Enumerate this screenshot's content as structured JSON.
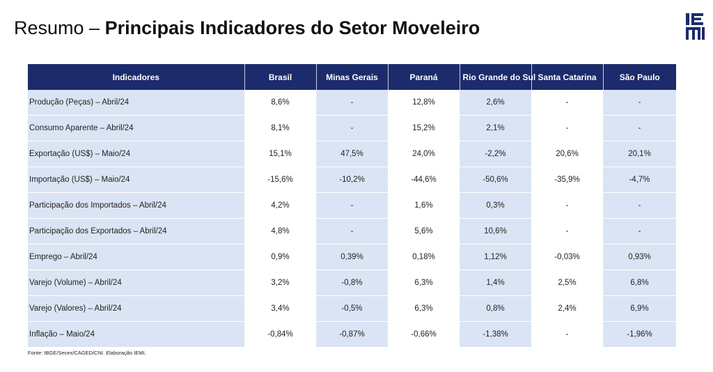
{
  "title": {
    "prefix": "Resumo –",
    "main": "Principais Indicadores do Setor Moveleiro"
  },
  "logo": {
    "icon": "iemi-logo-icon",
    "text": "IEMI",
    "color": "#1b2b6b"
  },
  "table": {
    "headers": [
      "Indicadores",
      "Brasil",
      "Minas Gerais",
      "Paraná",
      "Rio Grande do Sul",
      "Santa Catarina",
      "São Paulo"
    ],
    "rows": [
      [
        "Produção (Peças) – Abril/24",
        "8,6%",
        "-",
        "12,8%",
        "2,6%",
        "-",
        "-"
      ],
      [
        "Consumo Aparente – Abril/24",
        "8,1%",
        "-",
        "15,2%",
        "2,1%",
        "-",
        "-"
      ],
      [
        "Exportação (US$) – Maio/24",
        "15,1%",
        "47,5%",
        "24,0%",
        "-2,2%",
        "20,6%",
        "20,1%"
      ],
      [
        "Importação (US$) – Maio/24",
        "-15,6%",
        "-10,2%",
        "-44,6%",
        "-50,6%",
        "-35,9%",
        "-4,7%"
      ],
      [
        "Participação dos Importados – Abril/24",
        "4,2%",
        "-",
        "1,6%",
        "0,3%",
        "-",
        "-"
      ],
      [
        "Participação dos Exportados – Abril/24",
        "4,8%",
        "-",
        "5,6%",
        "10,6%",
        "-",
        "-"
      ],
      [
        "Emprego – Abril/24",
        "0,9%",
        "0,39%",
        "0,18%",
        "1,12%",
        "-0,03%",
        "0,93%"
      ],
      [
        "Varejo (Volume) – Abril/24",
        "3,2%",
        "-0,8%",
        "6,3%",
        "1,4%",
        "2,5%",
        "6,8%"
      ],
      [
        "Varejo (Valores) – Abril/24",
        "3,4%",
        "-0,5%",
        "6,3%",
        "0,8%",
        "2,4%",
        "6,9%"
      ],
      [
        "Inflação  – Maio/24",
        "-0,84%",
        "-0,87%",
        "-0,66%",
        "-1,38%",
        "-",
        "-1,96%"
      ]
    ]
  },
  "source": "Fonte: IBGE/Secex/CAGED/CNI. Elaboração IEMI.",
  "colors": {
    "header_bg": "#1b2b6b",
    "band_bg": "#dbe4f4"
  }
}
